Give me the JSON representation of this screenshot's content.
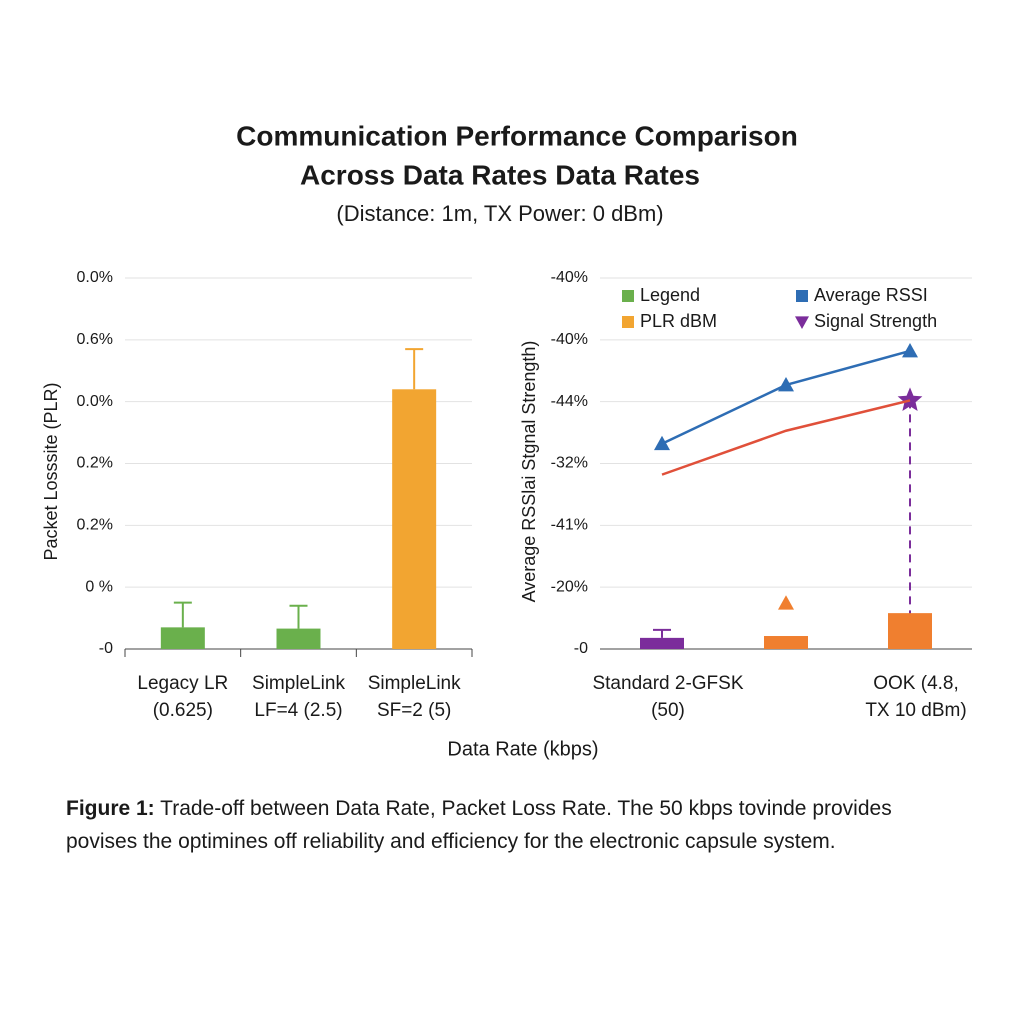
{
  "header": {
    "title": [
      "Communication Performance Comparison",
      "Across Data Rates Data Rates"
    ],
    "subtitle": "(Distance: 1m, TX Power: 0 dBm)"
  },
  "chart_data": [
    {
      "type": "bar",
      "y_label": "Packet Losssite (PLR)",
      "categories": [
        [
          "Legacy LR",
          "(0.625)"
        ],
        [
          "SimpleLink",
          "LF=4 (2.5)"
        ],
        [
          "SimpleLink",
          "SF=2 (5)"
        ]
      ],
      "values": [
        0.35,
        0.33,
        4.2
      ],
      "errors": [
        0.4,
        0.37,
        0.65
      ],
      "colors": [
        "#6ab04c",
        "#6ab04c",
        "#f2a531"
      ],
      "ylim": [
        0,
        6
      ],
      "yticks": [
        {
          "value": 0,
          "label": "-0"
        },
        {
          "value": 1,
          "label": "0 %"
        },
        {
          "value": 2,
          "label": "0.2%"
        },
        {
          "value": 3,
          "label": "0.2%"
        },
        {
          "value": 4,
          "label": "0.0%"
        },
        {
          "value": 5,
          "label": "0.6%"
        },
        {
          "value": 6,
          "label": "0.0%"
        }
      ],
      "grid": true
    },
    {
      "type": "combo",
      "y_label": "Average RSSlai Stgnal Strength)",
      "categories": [
        [
          "Standard 2-GFSK",
          "(50)"
        ],
        null,
        [
          "OOK (4.8,",
          "TX 10 dBm)"
        ]
      ],
      "ylim": [
        0,
        6
      ],
      "yticks": [
        {
          "value": 0,
          "label": "-0"
        },
        {
          "value": 1,
          "label": "-20%"
        },
        {
          "value": 2,
          "label": "-41%"
        },
        {
          "value": 3,
          "label": "-32%"
        },
        {
          "value": 4,
          "label": "-44%"
        },
        {
          "value": 5,
          "label": "-40%"
        },
        {
          "value": 6,
          "label": "-40%"
        }
      ],
      "grid": true,
      "series": [
        {
          "type": "bar",
          "colors": [
            "#7b2d9b",
            "#f07f2f",
            "#f07f2f"
          ],
          "values": [
            0.18,
            0.21,
            0.58
          ],
          "errors": [
            0.13,
            null,
            null
          ]
        },
        {
          "type": "line",
          "color": "#2e6db4",
          "marker": "triangle",
          "values": [
            3.32,
            4.27,
            4.82
          ]
        },
        {
          "type": "line",
          "color": "#e0503a",
          "values": [
            2.82,
            3.53,
            4.02
          ]
        },
        {
          "type": "marker",
          "color": "#7b2d9b",
          "marker": "star",
          "drop_line": true,
          "values": [
            null,
            null,
            4.02
          ]
        },
        {
          "type": "marker",
          "color": "#f07f2f",
          "marker": "triangle",
          "values": [
            null,
            0.74,
            null
          ]
        }
      ],
      "legend": [
        {
          "label": "Legend",
          "color": "#6ab04c",
          "marker": "square"
        },
        {
          "label": "Average RSSI",
          "color": "#2e6db4",
          "marker": "square"
        },
        {
          "label": "PLR dBM",
          "color": "#f2a531",
          "marker": "square"
        },
        {
          "label": "Signal Strength",
          "color": "#7b2d9b",
          "marker": "triangle-down"
        }
      ]
    }
  ],
  "x_axis_label": "Data Rate (kbps)",
  "caption": {
    "lead": "Figure 1:",
    "text": "Trade-off between Data Rate, Packet Loss Rate. The 50 kbps tovinde provides povises the  optimines  off  reliability and efficiency for the electronic capsule system."
  }
}
